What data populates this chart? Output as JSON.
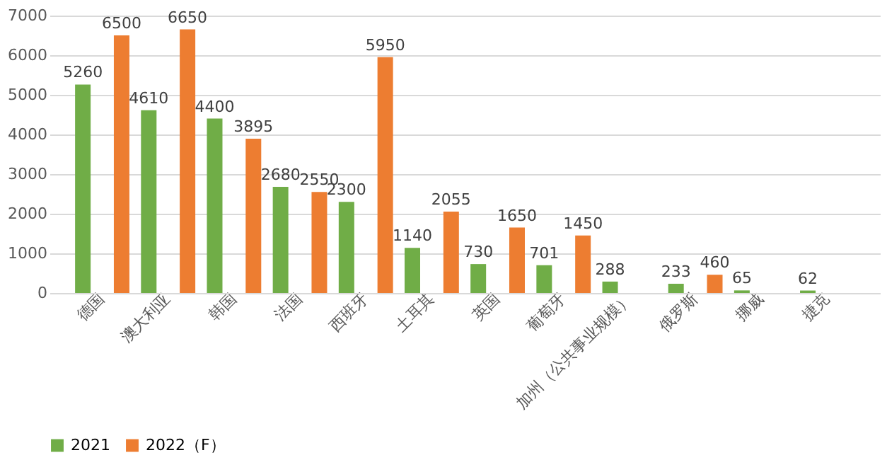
{
  "chart_data": {
    "type": "bar",
    "categories": [
      "德国",
      "澳大利亚",
      "韩国",
      "法国",
      "西班牙",
      "土耳其",
      "英国",
      "葡萄牙",
      "加州（公共事业规模）",
      "俄罗斯",
      "挪威",
      "捷克"
    ],
    "series": [
      {
        "name": "2021",
        "color": "#70ad47",
        "values": [
          5260,
          4610,
          4400,
          2680,
          2300,
          1140,
          730,
          701,
          288,
          233,
          65,
          62
        ]
      },
      {
        "name": "2022（F）",
        "color": "#ed7d31",
        "values": [
          6500,
          6650,
          3895,
          2550,
          5950,
          2055,
          1650,
          1450,
          null,
          460,
          null,
          null
        ]
      }
    ],
    "ylim": [
      0,
      7000
    ],
    "yticks": [
      0,
      1000,
      2000,
      3000,
      4000,
      5000,
      6000,
      7000
    ],
    "grid": "y",
    "legend": "bottom",
    "data_labels": true
  }
}
